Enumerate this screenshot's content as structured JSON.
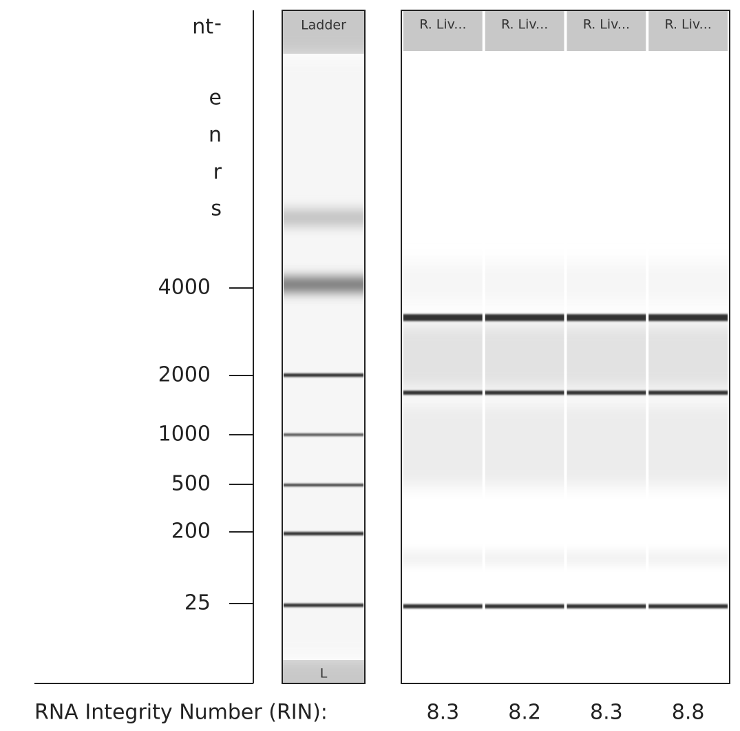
{
  "cropped_text": [
    "-",
    "e",
    "n",
    "r",
    "s"
  ],
  "axis": {
    "unit": "nt",
    "ticks": [
      "4000",
      "2000",
      "1000",
      "500",
      "200",
      "25"
    ]
  },
  "ladder": {
    "header": "Ladder",
    "footer": "L"
  },
  "lanes": [
    "R. Liv...",
    "R. Liv...",
    "R. Liv...",
    "R. Liv..."
  ],
  "rin": {
    "label": "RNA Integrity Number (RIN):",
    "values": [
      "8.3",
      "8.2",
      "8.3",
      "8.8"
    ]
  }
}
